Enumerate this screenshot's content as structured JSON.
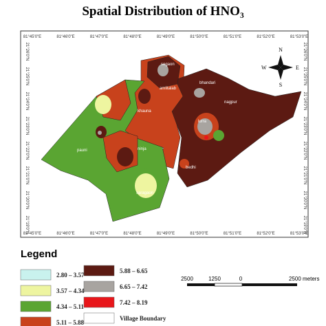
{
  "title": "Spatial Distribution of HNO₃",
  "lon_labels": [
    "81°45'0\"E",
    "81°46'0\"E",
    "81°47'0\"E",
    "81°48'0\"E",
    "81°49'0\"E",
    "81°50'0\"E",
    "81°51'0\"E",
    "81°52'0\"E",
    "81°53'0\"E"
  ],
  "lat_labels": [
    "21°26'0\"N",
    "21°25'0\"N",
    "21°24'0\"N",
    "21°23'0\"N",
    "21°22'0\"N",
    "21°21'0\"N",
    "21°20'0\"N",
    "21°19'0\"N"
  ],
  "villages": [
    "segaon",
    "amlitalab",
    "khauna",
    "bhandari",
    "lurra",
    "nagpur",
    "pauni",
    "ninja",
    "saragaon",
    "bedhi"
  ],
  "compass": {
    "n": "N",
    "s": "S",
    "e": "E",
    "w": "W"
  },
  "legend": {
    "title": "Legend",
    "items": [
      {
        "label": "2.80 – 3.57",
        "color": "#c9f2ee"
      },
      {
        "label": "3.57 – 4.34",
        "color": "#eef5a0"
      },
      {
        "label": "4.34 – 5.11",
        "color": "#5aa532"
      },
      {
        "label": "5.11 – 5.88",
        "color": "#c8421c"
      },
      {
        "label": "5.88 – 6.65",
        "color": "#5c1a12"
      },
      {
        "label": "6.65 – 7.42",
        "color": "#a8a4a0"
      },
      {
        "label": "7.42 – 8.19",
        "color": "#e8161a"
      },
      {
        "label": "Village Boundary",
        "color": "#ffffff"
      }
    ]
  },
  "scale_labels": [
    "2500",
    "1250",
    "0",
    "2500 meters"
  ]
}
